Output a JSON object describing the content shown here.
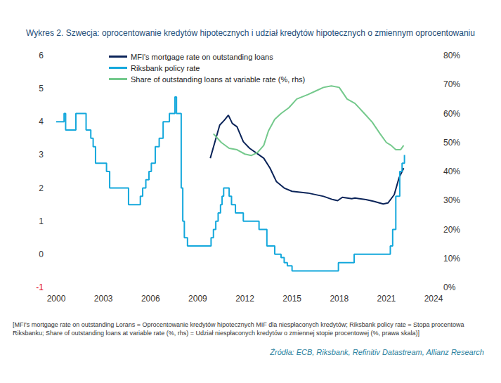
{
  "chart_data": {
    "type": "line",
    "title": "Wykres 2. Szwecja: oprocentowanie kredytów hipotecznych i udział kredytów hipotecznych o zmiennym oprocentowaniu",
    "notes": "[MFI's mortgage rate on outstanding Lorans = Oprocentowanie kredytów hipotecznych MIF dla niespłaconych kredytów; Riksbank policy rate = Stopa procentowa Riksbanku; Share of outstanding loans at variable rate (%, rhs) = Udział niespłaconych kredytów o zmiennej stopie procentowej (%, prawa skala)]",
    "source": "Źródła: ECB, Riksbank, Refinitiv Datastream, Allianz Research",
    "xlim": [
      2000,
      2024
    ],
    "xticks": [
      2000,
      2003,
      2006,
      2009,
      2012,
      2015,
      2018,
      2021,
      2024
    ],
    "ylim": [
      -1,
      6
    ],
    "yticks": [
      -1,
      0,
      1,
      2,
      3,
      4,
      5,
      6
    ],
    "y2lim": [
      0,
      80
    ],
    "y2ticks": [
      {
        "value": 0,
        "label": "0%"
      },
      {
        "value": 10,
        "label": "10%"
      },
      {
        "value": 20,
        "label": "20%"
      },
      {
        "value": 30,
        "label": "30%"
      },
      {
        "value": 40,
        "label": "40%"
      },
      {
        "value": 50,
        "label": "50%"
      },
      {
        "value": 60,
        "label": "60%"
      },
      {
        "value": 70,
        "label": "70%"
      },
      {
        "value": 80,
        "label": "80%"
      }
    ],
    "grid": false,
    "legend": "top",
    "series": [
      {
        "name": "MFI's mortgage rate on outstanding loans",
        "color": "#0b2459",
        "type": "line",
        "x": [
          2009.8,
          2010.1,
          2010.4,
          2010.7,
          2010.95,
          2011.2,
          2011.5,
          2011.9,
          2012.3,
          2012.9,
          2013.2,
          2013.6,
          2014.0,
          2014.5,
          2015.0,
          2016.0,
          2017.0,
          2017.6,
          2017.9,
          2018.2,
          2018.8,
          2019.0,
          2019.7,
          2020.2,
          2020.8,
          2021.1,
          2021.5,
          2021.8,
          2022.1
        ],
        "values": [
          2.9,
          3.4,
          3.9,
          4.05,
          4.2,
          3.95,
          3.85,
          3.4,
          3.2,
          3.0,
          2.9,
          2.6,
          2.2,
          2.0,
          1.9,
          1.85,
          1.75,
          1.65,
          1.62,
          1.72,
          1.68,
          1.7,
          1.65,
          1.6,
          1.52,
          1.55,
          1.8,
          2.3,
          2.6
        ]
      },
      {
        "name": "Riksbank policy rate",
        "color": "#14a8dc",
        "type": "step",
        "x": [
          2000.0,
          2000.5,
          2000.6,
          2001.25,
          2001.9,
          2002.2,
          2002.35,
          2002.5,
          2003.2,
          2003.4,
          2004.6,
          2005.35,
          2005.5,
          2005.7,
          2005.9,
          2006.05,
          2006.3,
          2006.55,
          2006.8,
          2007.2,
          2007.55,
          2007.65,
          2007.95,
          2008.05,
          2008.15,
          2008.35,
          2009.85,
          2010.0,
          2010.15,
          2010.3,
          2010.45,
          2010.55,
          2010.65,
          2011.0,
          2011.15,
          2011.4,
          2011.9,
          2012.9,
          2013.4,
          2013.9,
          2014.3,
          2014.5,
          2014.7,
          2015.0,
          2017.95,
          2018.95,
          2021.25,
          2021.4,
          2021.6,
          2021.85,
          2022.0,
          2022.15
        ],
        "values": [
          4.0,
          4.25,
          3.75,
          4.25,
          3.75,
          3.5,
          3.25,
          2.75,
          2.5,
          2.0,
          1.5,
          1.75,
          2.0,
          2.25,
          2.5,
          2.75,
          3.25,
          3.5,
          4.0,
          4.25,
          4.75,
          4.25,
          2.0,
          1.0,
          0.5,
          0.25,
          0.5,
          0.75,
          1.0,
          1.25,
          1.5,
          1.75,
          2.0,
          1.75,
          1.5,
          1.25,
          1.0,
          0.75,
          0.25,
          0.0,
          -0.1,
          -0.25,
          -0.35,
          -0.5,
          -0.25,
          0.0,
          0.25,
          0.75,
          1.75,
          2.5,
          2.75,
          3.0
        ]
      },
      {
        "name": "Share of outstanding loans at variable rate (%, rhs)",
        "color": "#74c98c",
        "type": "line",
        "axis": "y2",
        "x": [
          2010.0,
          2010.5,
          2011.0,
          2011.5,
          2012.0,
          2012.4,
          2012.8,
          2013.2,
          2013.5,
          2013.9,
          2014.3,
          2014.8,
          2015.3,
          2016.0,
          2016.6,
          2017.0,
          2017.5,
          2018.0,
          2018.5,
          2019.0,
          2019.6,
          2020.1,
          2020.6,
          2021.0,
          2021.3,
          2021.6,
          2021.9,
          2022.1
        ],
        "values": [
          53,
          50,
          48,
          47.5,
          46,
          45.5,
          46.5,
          49,
          54,
          58,
          60,
          62,
          65,
          66.5,
          68,
          69,
          69.5,
          69,
          65,
          63.5,
          60,
          57,
          53,
          50,
          49,
          47.5,
          47.5,
          49
        ]
      }
    ]
  }
}
